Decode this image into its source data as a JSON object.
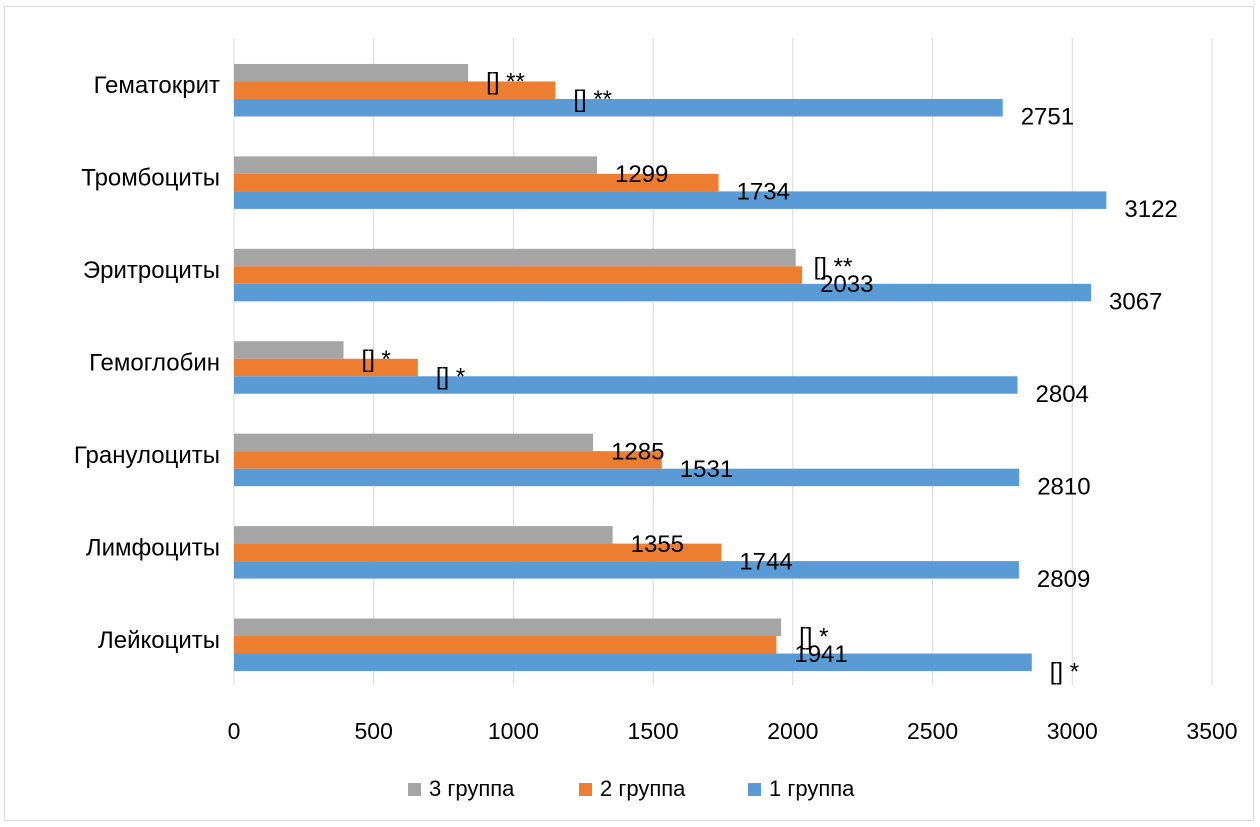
{
  "chart_data": {
    "type": "bar",
    "orientation": "horizontal",
    "categories": [
      "Лейкоциты",
      "Лимфоциты",
      "Гранулоциты",
      "Гемоглобин",
      "Эритроциты",
      "Тромбоциты",
      "Гематокрит"
    ],
    "series": [
      {
        "name": "1 группа",
        "color": "#5b9bd5",
        "values": [
          2855,
          2809,
          2810,
          2804,
          3067,
          3122,
          2751
        ],
        "data_labels": [
          "[] *",
          "2809",
          "2810",
          "2804",
          "3067",
          "3122",
          "2751"
        ]
      },
      {
        "name": "2 группа",
        "color": "#ed7d31",
        "values": [
          1941,
          1744,
          1531,
          658,
          2033,
          1734,
          1150
        ],
        "data_labels": [
          "1941",
          "1744",
          "1531",
          "[] *",
          "2033",
          "1734",
          "[] **"
        ]
      },
      {
        "name": "3 группа",
        "color": "#a5a5a5",
        "values": [
          1958,
          1355,
          1285,
          392,
          2010,
          1299,
          838
        ],
        "data_labels": [
          "[] *",
          "1355",
          "1285",
          "[] *",
          "[] **",
          "1299",
          "[] **"
        ]
      }
    ],
    "xlim": [
      0,
      3500
    ],
    "x_ticks": [
      "0",
      "500",
      "1000",
      "1500",
      "2000",
      "2500",
      "3000",
      "3500"
    ],
    "grid": true,
    "legend_position": "bottom",
    "legend_order": [
      "3 группа",
      "2 группа",
      "1 группа"
    ]
  }
}
